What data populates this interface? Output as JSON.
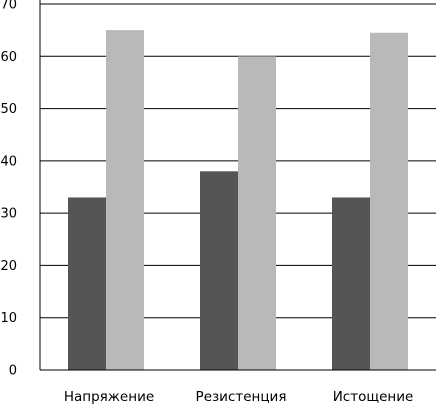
{
  "chart_data": {
    "type": "bar",
    "title": "",
    "xlabel": "",
    "ylabel": "",
    "categories": [
      "Напряжение",
      "Резистенция",
      "Истощение"
    ],
    "series": [
      {
        "color": "#555555",
        "values": [
          33,
          38,
          33
        ]
      },
      {
        "color": "#b9b9b9",
        "values": [
          65,
          60,
          64.5
        ]
      }
    ],
    "ylim": [
      0,
      70
    ],
    "yticks": [
      0,
      10,
      20,
      30,
      40,
      50,
      60,
      70
    ],
    "grid": true,
    "legend": "none"
  }
}
